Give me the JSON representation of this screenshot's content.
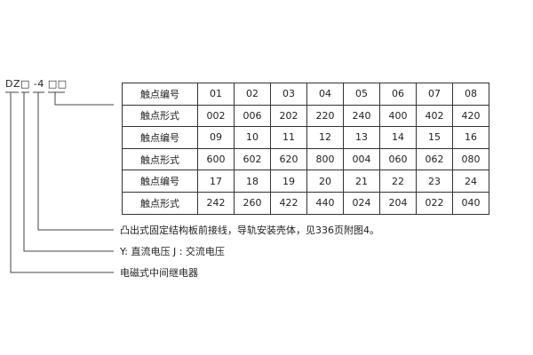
{
  "model_code": "DZ□ -4 □□",
  "table": {
    "rows": [
      {
        "label": "触点编号",
        "cells": [
          "01",
          "02",
          "03",
          "04",
          "05",
          "06",
          "07",
          "08"
        ]
      },
      {
        "label": "触点形式",
        "cells": [
          "002",
          "006",
          "202",
          "220",
          "240",
          "400",
          "402",
          "420"
        ]
      },
      {
        "label": "触点编号",
        "cells": [
          "09",
          "10",
          "11",
          "12",
          "13",
          "14",
          "15",
          "16"
        ]
      },
      {
        "label": "触点形式",
        "cells": [
          "600",
          "602",
          "620",
          "800",
          "004",
          "060",
          "062",
          "080"
        ]
      },
      {
        "label": "触点编号",
        "cells": [
          "17",
          "18",
          "19",
          "20",
          "21",
          "22",
          "23",
          "24"
        ]
      },
      {
        "label": "触点形式",
        "cells": [
          "242",
          "260",
          "422",
          "440",
          "024",
          "204",
          "022",
          "040"
        ]
      }
    ]
  },
  "descriptions": [
    "凸出式固定结构板前接线，导轨安装壳体，见336页附图4。",
    "Y: 直流电压   J : 交流电压",
    "电磁式中间继电器"
  ]
}
